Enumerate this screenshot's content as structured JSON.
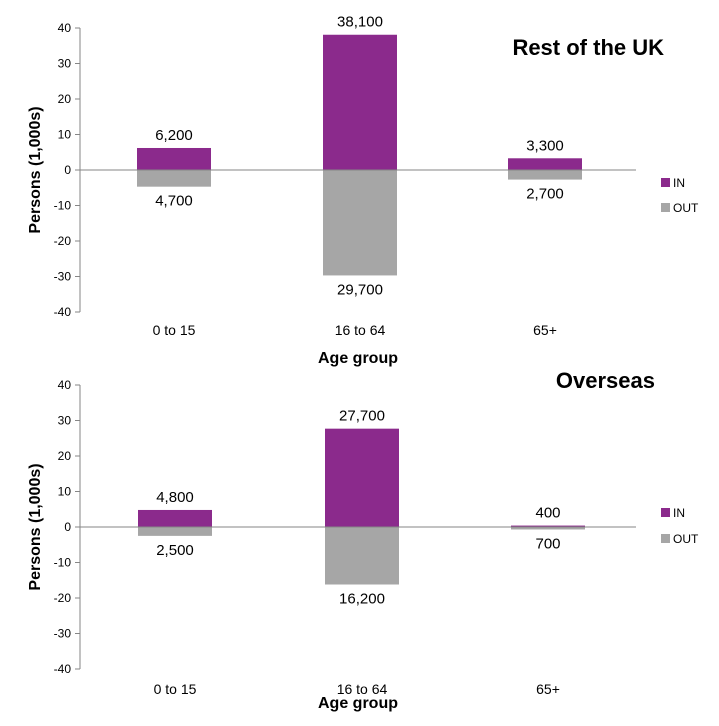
{
  "chart_data": [
    {
      "type": "bar",
      "title": "Rest of the UK",
      "xlabel": "Age group",
      "ylabel": "Persons (1,000s)",
      "categories": [
        "0 to 15",
        "16 to 64",
        "65+"
      ],
      "ylim": [
        -40,
        40
      ],
      "yticks": [
        40,
        30,
        20,
        10,
        0,
        -10,
        -20,
        -30,
        -40
      ],
      "legend_position": "right",
      "series": [
        {
          "name": "IN",
          "color": "#8B2A8C",
          "values": [
            6.2,
            38.1,
            3.3
          ],
          "labels": [
            "6,200",
            "38,100",
            "3,300"
          ]
        },
        {
          "name": "OUT",
          "color": "#A6A6A6",
          "values": [
            -4.7,
            -29.7,
            -2.7
          ],
          "labels": [
            "4,700",
            "29,700",
            "2,700"
          ]
        }
      ]
    },
    {
      "type": "bar",
      "title": "Overseas",
      "xlabel": "Age group",
      "ylabel": "Persons (1,000s)",
      "categories": [
        "0 to 15",
        "16 to 64",
        "65+"
      ],
      "ylim": [
        -40,
        40
      ],
      "yticks": [
        40,
        30,
        20,
        10,
        0,
        -10,
        -20,
        -30,
        -40
      ],
      "legend_position": "right",
      "series": [
        {
          "name": "IN",
          "color": "#8B2A8C",
          "values": [
            4.8,
            27.7,
            0.4
          ],
          "labels": [
            "4,800",
            "27,700",
            "400"
          ]
        },
        {
          "name": "OUT",
          "color": "#A6A6A6",
          "values": [
            -2.5,
            -16.2,
            -0.7
          ],
          "labels": [
            "2,500",
            "16,200",
            "700"
          ]
        }
      ]
    }
  ]
}
